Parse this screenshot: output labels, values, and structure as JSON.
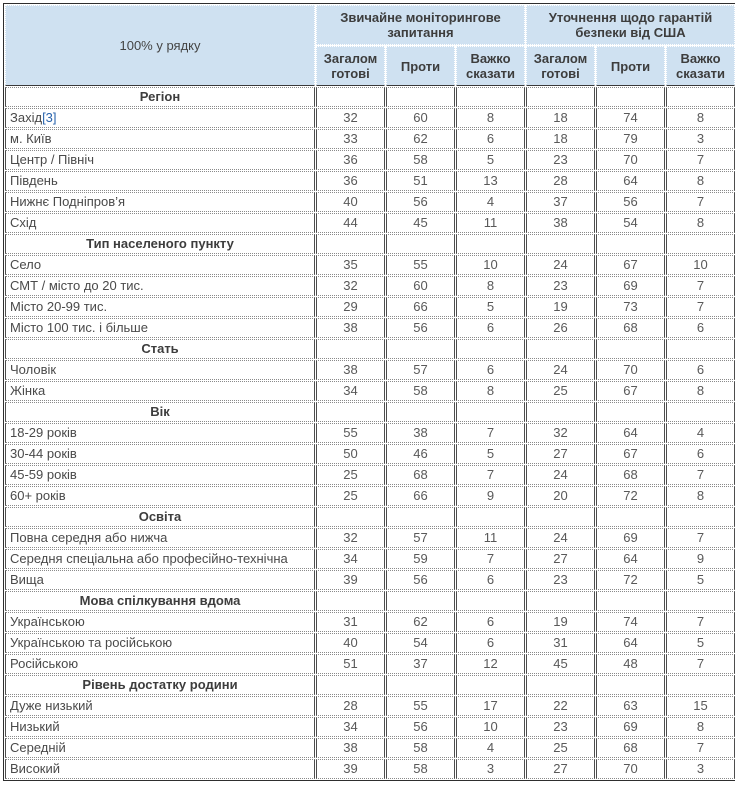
{
  "chart_data": {
    "type": "table",
    "title": "100% у рядку",
    "column_groups": [
      "Звичайне моніторингове запитання",
      "Уточнення щодо гарантій безпеки від США"
    ],
    "columns": [
      "Загалом готові",
      "Проти",
      "Важко сказати",
      "Загалом готові",
      "Проти",
      "Важко сказати"
    ],
    "sections": [
      {
        "title": "Регіон",
        "rows": [
          {
            "label": "Захід",
            "note": "[3]",
            "values": [
              32,
              60,
              8,
              18,
              74,
              8
            ]
          },
          {
            "label": "м. Київ",
            "values": [
              33,
              62,
              6,
              18,
              79,
              3
            ]
          },
          {
            "label": "Центр / Північ",
            "values": [
              36,
              58,
              5,
              23,
              70,
              7
            ]
          },
          {
            "label": "Південь",
            "values": [
              36,
              51,
              13,
              28,
              64,
              8
            ]
          },
          {
            "label": "Нижнє Подніпров’я",
            "values": [
              40,
              56,
              4,
              37,
              56,
              7
            ]
          },
          {
            "label": "Схід",
            "values": [
              44,
              45,
              11,
              38,
              54,
              8
            ]
          }
        ]
      },
      {
        "title": "Тип населеного пункту",
        "rows": [
          {
            "label": "Село",
            "values": [
              35,
              55,
              10,
              24,
              67,
              10
            ]
          },
          {
            "label": "СМТ / місто до 20 тис.",
            "values": [
              32,
              60,
              8,
              23,
              69,
              7
            ]
          },
          {
            "label": "Місто 20-99 тис.",
            "values": [
              29,
              66,
              5,
              19,
              73,
              7
            ]
          },
          {
            "label": "Місто 100 тис. і більше",
            "values": [
              38,
              56,
              6,
              26,
              68,
              6
            ]
          }
        ]
      },
      {
        "title": "Стать",
        "rows": [
          {
            "label": "Чоловік",
            "values": [
              38,
              57,
              6,
              24,
              70,
              6
            ]
          },
          {
            "label": "Жінка",
            "values": [
              34,
              58,
              8,
              25,
              67,
              8
            ]
          }
        ]
      },
      {
        "title": "Вік",
        "rows": [
          {
            "label": "18-29 років",
            "values": [
              55,
              38,
              7,
              32,
              64,
              4
            ]
          },
          {
            "label": "30-44 років",
            "values": [
              50,
              46,
              5,
              27,
              67,
              6
            ]
          },
          {
            "label": "45-59 років",
            "values": [
              25,
              68,
              7,
              24,
              68,
              7
            ]
          },
          {
            "label": "60+ років",
            "values": [
              25,
              66,
              9,
              20,
              72,
              8
            ]
          }
        ]
      },
      {
        "title": "Освіта",
        "rows": [
          {
            "label": "Повна середня або нижча",
            "values": [
              32,
              57,
              11,
              24,
              69,
              7
            ]
          },
          {
            "label": "Середня спеціальна або професійно-технічна",
            "values": [
              34,
              59,
              7,
              27,
              64,
              9
            ]
          },
          {
            "label": "Вища",
            "values": [
              39,
              56,
              6,
              23,
              72,
              5
            ]
          }
        ]
      },
      {
        "title": "Мова спілкування вдома",
        "rows": [
          {
            "label": "Українською",
            "values": [
              31,
              62,
              6,
              19,
              74,
              7
            ]
          },
          {
            "label": "Українською та російською",
            "values": [
              40,
              54,
              6,
              31,
              64,
              5
            ]
          },
          {
            "label": "Російською",
            "values": [
              51,
              37,
              12,
              45,
              48,
              7
            ]
          }
        ]
      },
      {
        "title": "Рівень достатку родини",
        "rows": [
          {
            "label": "Дуже низький",
            "values": [
              28,
              55,
              17,
              22,
              63,
              15
            ]
          },
          {
            "label": "Низький",
            "values": [
              34,
              56,
              10,
              23,
              69,
              8
            ]
          },
          {
            "label": "Середній",
            "values": [
              38,
              58,
              4,
              25,
              68,
              7
            ]
          },
          {
            "label": "Високий",
            "values": [
              39,
              58,
              3,
              27,
              70,
              3
            ]
          }
        ]
      }
    ],
    "colors": {
      "header_bg": "#cfe1f1",
      "outer_border": "#2e2e2e",
      "solid_border": "#4d4d4d",
      "dotted_border": "#8a8a8a",
      "label_text": "#4a4a4a",
      "number_text": "#595959",
      "link": "#2a64ad"
    }
  }
}
